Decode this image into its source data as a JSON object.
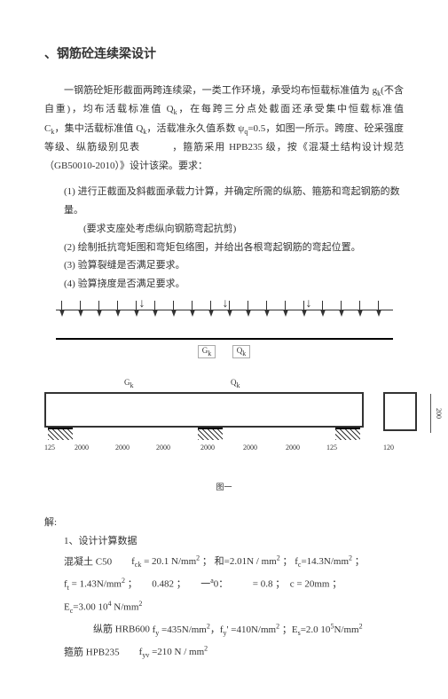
{
  "title": "、钢筋砼连续梁设计",
  "para_main": "一钢筋砼矩形截面两跨连续梁，一类工作环境，承受均布恒载标准值为 g<sub>k</sub>(不含自重)，均布活载标准值 Q<sub>k</sub>，在每跨三分点处截面还承受集中恒载标准值　　　　C<sub>k</sub>，集中活载标准值 Q<sub>k</sub>，活载准永久值系数 ψ<sub>q</sub>=0.5，如图一所示。跨度、砼采强度等级、纵筋级别见表　　　，箍筋采用 HPB235 级，按《混凝土结构设计规范（GB50010-2010）》设计该梁。要求：",
  "item1": "(1) 进行正截面及斜截面承载力计算，并确定所需的纵筋、箍筋和弯起钢筋的数量。",
  "subitem1": "(要求支座处考虑纵向钢筋弯起抗剪)",
  "item2": "(2) 绘制抵抗弯矩图和弯矩包络图，并给出各根弯起钢筋的弯起位置。",
  "item3": "(3) 验算裂缝是否满足要求。",
  "item4": "(4) 验算挠度是否满足要求。",
  "d1": {
    "l1": "G<sub>k</sub>",
    "l2": "Q<sub>k</sub>"
  },
  "d2": {
    "lab_g": "G<sub>k</sub>",
    "lab_q": "Q<sub>k</sub>",
    "dim1": "125",
    "dim2": "2000",
    "dim3": "2000",
    "dim4": "2000",
    "dim5": "2000",
    "dim6": "2000",
    "dim7": "2000",
    "dim8": "125",
    "dim_s": "120",
    "dim_h": "200"
  },
  "caption": "图一",
  "sol": "解:",
  "h1": "1、设计计算数据",
  "c1a": "混凝土 C50",
  "c1b": "f<sub>ck</sub> = 20.1 N/mm<sup>2</sup> ； 和=2.01N / mm<sup>2</sup> ； f<sub>c</sub>=14.3N/mm<sup>2</sup> ；",
  "c2": "f<sub>t</sub> = 1.43N/mm<sup>2</sup> ；　　0.482 ；　　一<sup>a</sup>0：　　　= 0.8 ；　c = 20mm ；",
  "c3": "E<sub>c</sub>=3.00 10<sup>4</sup> N/mm<sup>2</sup>",
  "c4a": "纵筋 HRB600",
  "c4b": "f<sub>y</sub> =435N/mm<sup>2</sup>，f<sub>y</sub>' =410N/mm<sup>2</sup> ；E<sub>s</sub>=2.0 10<sup>5</sup>N/mm<sup>2</sup>",
  "c5a": "箍筋 HPB235",
  "c5b": "f<sub>yv</sub> =210 N / mm<sup>2</sup>"
}
